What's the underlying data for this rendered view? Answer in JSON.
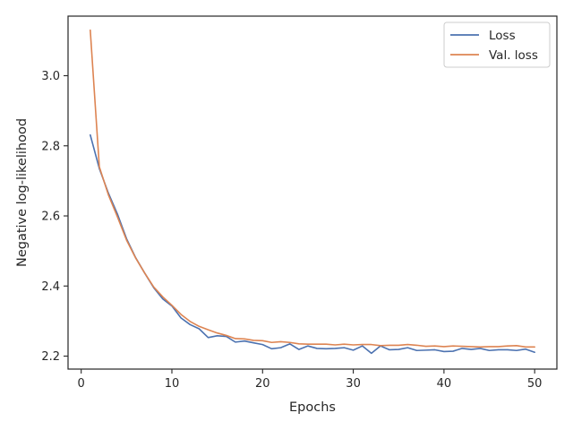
{
  "chart_data": {
    "type": "line",
    "title": "",
    "xlabel": "Epochs",
    "ylabel": "Negative log-likelihood",
    "xlim": [
      -1.45,
      52.45
    ],
    "ylim": [
      2.163,
      3.17
    ],
    "xticks": [
      0,
      10,
      20,
      30,
      40,
      50
    ],
    "yticks": [
      2.2,
      2.4,
      2.6,
      2.8,
      3.0
    ],
    "ytick_labels": [
      "2.2",
      "2.4",
      "2.6",
      "2.8",
      "3.0"
    ],
    "grid": false,
    "legend_position": "top-right",
    "x": [
      1,
      2,
      3,
      4,
      5,
      6,
      7,
      8,
      9,
      10,
      11,
      12,
      13,
      14,
      15,
      16,
      17,
      18,
      19,
      20,
      21,
      22,
      23,
      24,
      25,
      26,
      27,
      28,
      29,
      30,
      31,
      32,
      33,
      34,
      35,
      36,
      37,
      38,
      39,
      40,
      41,
      42,
      43,
      44,
      45,
      46,
      47,
      48,
      49,
      50
    ],
    "series": [
      {
        "name": "Loss",
        "color": "#4c72b0",
        "values": [
          2.831,
          2.735,
          2.665,
          2.605,
          2.535,
          2.481,
          2.437,
          2.395,
          2.363,
          2.343,
          2.309,
          2.29,
          2.278,
          2.253,
          2.258,
          2.256,
          2.24,
          2.243,
          2.238,
          2.233,
          2.221,
          2.224,
          2.235,
          2.219,
          2.229,
          2.222,
          2.221,
          2.222,
          2.224,
          2.217,
          2.229,
          2.208,
          2.229,
          2.218,
          2.219,
          2.224,
          2.216,
          2.217,
          2.218,
          2.213,
          2.214,
          2.222,
          2.219,
          2.222,
          2.216,
          2.218,
          2.218,
          2.216,
          2.22,
          2.211
        ]
      },
      {
        "name": "Val. loss",
        "color": "#dd8452",
        "values": [
          3.13,
          2.74,
          2.66,
          2.597,
          2.531,
          2.48,
          2.437,
          2.397,
          2.369,
          2.345,
          2.319,
          2.299,
          2.285,
          2.275,
          2.266,
          2.259,
          2.25,
          2.249,
          2.245,
          2.244,
          2.239,
          2.241,
          2.239,
          2.235,
          2.234,
          2.234,
          2.234,
          2.232,
          2.234,
          2.232,
          2.233,
          2.233,
          2.23,
          2.231,
          2.231,
          2.233,
          2.231,
          2.228,
          2.229,
          2.227,
          2.229,
          2.228,
          2.227,
          2.226,
          2.227,
          2.227,
          2.229,
          2.23,
          2.226,
          2.226
        ]
      }
    ]
  }
}
